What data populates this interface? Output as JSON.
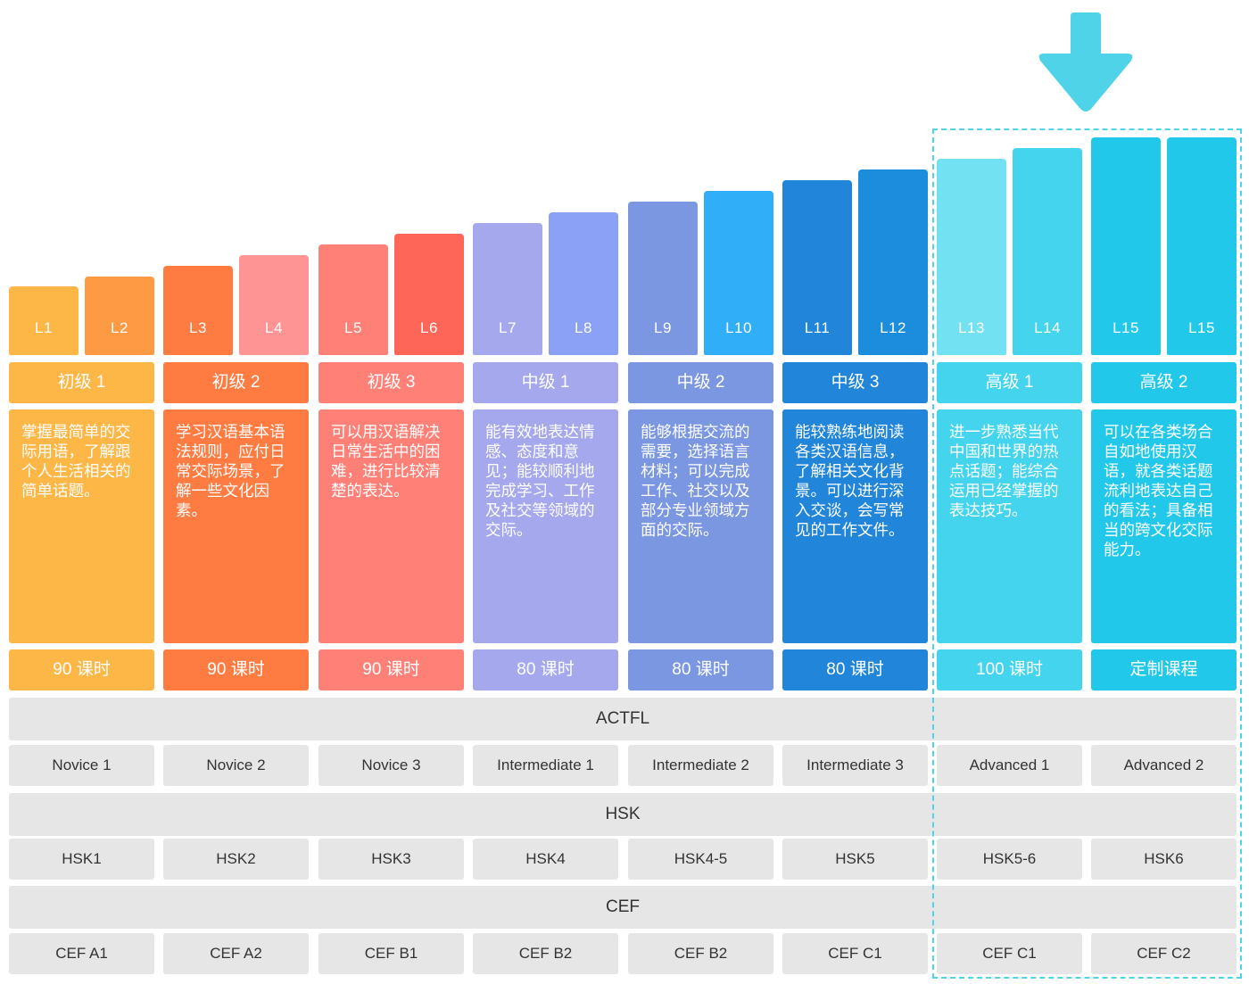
{
  "columns": [
    {
      "levels": [
        "L1",
        "L2"
      ],
      "bar_colors": [
        "#fdb747",
        "#fe9a43"
      ],
      "bar_heights": [
        77,
        88
      ],
      "group_label": "初级 1",
      "group_color": "#fdb747",
      "description": "掌握最简单的交际用语，了解跟个人生活相关的简单话题。",
      "hours": "90 课时",
      "actfl": "Novice 1",
      "hsk": "HSK1",
      "cef": "CEF A1"
    },
    {
      "levels": [
        "L3",
        "L4"
      ],
      "bar_colors": [
        "#fe7b41",
        "#fe9494"
      ],
      "bar_heights": [
        100,
        112
      ],
      "group_label": "初级 2",
      "group_color": "#fe7b41",
      "description": "学习汉语基本语法规则，应付日常交际场景，了解一些文化因素。",
      "hours": "90 课时",
      "actfl": "Novice 2",
      "hsk": "HSK2",
      "cef": "CEF A2"
    },
    {
      "levels": [
        "L5",
        "L6"
      ],
      "bar_colors": [
        "#fe8077",
        "#fe6658"
      ],
      "bar_heights": [
        124,
        136
      ],
      "group_label": "初级 3",
      "group_color": "#fe8077",
      "description": "可以用汉语解决日常生活中的困难，进行比较清楚的表达。",
      "hours": "90 课时",
      "actfl": "Novice 3",
      "hsk": "HSK3",
      "cef": "CEF B1"
    },
    {
      "levels": [
        "L7",
        "L8"
      ],
      "bar_colors": [
        "#a6a8ee",
        "#8aa1f6"
      ],
      "bar_heights": [
        148,
        160
      ],
      "group_label": "中级 1",
      "group_color": "#a6a8ee",
      "description": "能有效地表达情感、态度和意见；能较顺利地完成学习、工作及社交等领域的交际。",
      "hours": "80 课时",
      "actfl": "Intermediate 1",
      "hsk": "HSK4",
      "cef": "CEF B2"
    },
    {
      "levels": [
        "L9",
        "L10"
      ],
      "bar_colors": [
        "#7b97e1",
        "#30aef8"
      ],
      "bar_heights": [
        172,
        184
      ],
      "group_label": "中级 2",
      "group_color": "#7b97e1",
      "description": "能够根据交流的需要，选择语言材料；可以完成工作、社交以及部分专业领域方面的交际。",
      "hours": "80 课时",
      "actfl": "Intermediate 2",
      "hsk": "HSK4-5",
      "cef": "CEF B2"
    },
    {
      "levels": [
        "L11",
        "L12"
      ],
      "bar_colors": [
        "#2185d9",
        "#1b8ddc"
      ],
      "bar_heights": [
        196,
        208
      ],
      "group_label": "中级 3",
      "group_color": "#2185d9",
      "description": "能较熟练地阅读各类汉语信息，了解相关文化背景。可以进行深入交谈，会写常见的工作文件。",
      "hours": "80 课时",
      "actfl": "Intermediate 3",
      "hsk": "HSK5",
      "cef": "CEF C1"
    },
    {
      "levels": [
        "L13",
        "L14"
      ],
      "bar_colors": [
        "#72e1f1",
        "#44d4ee"
      ],
      "bar_heights": [
        220,
        232
      ],
      "group_label": "高级 1",
      "group_color": "#44d4ee",
      "description": "进一步熟悉当代中国和世界的热点话题；能综合运用已经掌握的表达技巧。",
      "hours": "100 课时",
      "actfl": "Advanced 1",
      "hsk": "HSK5-6",
      "cef": "CEF C1"
    },
    {
      "levels": [
        "L15",
        "L15"
      ],
      "bar_colors": [
        "#22c8ea",
        "#22c8ea"
      ],
      "bar_heights": [
        244,
        244
      ],
      "group_label": "高级 2",
      "group_color": "#22c8ea",
      "description": "可以在各类场合自如地使用汉语，就各类话题流利地表达自己的看法；具备相当的跨文化交际能力。",
      "hours": "定制课程",
      "actfl": "Advanced 2",
      "hsk": "HSK6",
      "cef": "CEF C2"
    }
  ],
  "standards": {
    "actfl_label": "ACTFL",
    "hsk_label": "HSK",
    "cef_label": "CEF"
  },
  "colors": {
    "highlight": "#4fd3e8",
    "arrow": "#4fd3e8",
    "row_bg": "#e6e6e6"
  },
  "icons": {
    "arrow": "down-arrow-icon"
  }
}
